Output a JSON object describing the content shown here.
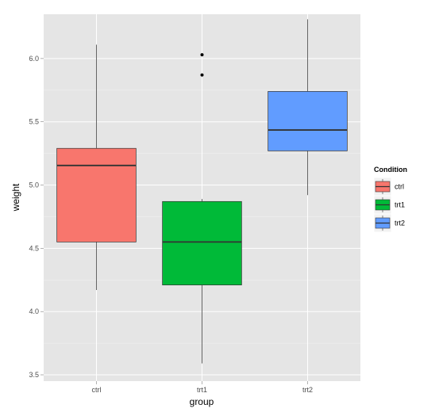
{
  "chart_data": {
    "type": "boxplot",
    "xlabel": "group",
    "ylabel": "weight",
    "ylim": [
      3.45,
      6.35
    ],
    "yticks": [
      3.5,
      4.0,
      4.5,
      5.0,
      5.5,
      6.0
    ],
    "ytick_labels": [
      "3.5",
      "4.0",
      "4.5",
      "5.0",
      "5.5",
      "6.0"
    ],
    "categories": [
      "ctrl",
      "trt1",
      "trt2"
    ],
    "grid": true,
    "legend": {
      "title": "Condition",
      "position": "right",
      "entries": [
        "ctrl",
        "trt1",
        "trt2"
      ]
    },
    "series": [
      {
        "category": "ctrl",
        "color": "#F8766D",
        "whisker_low": 4.17,
        "q1": 4.55,
        "median": 5.155,
        "q3": 5.29,
        "whisker_high": 6.11,
        "outliers": []
      },
      {
        "category": "trt1",
        "color": "#00BA38",
        "whisker_low": 3.59,
        "q1": 4.21,
        "median": 4.55,
        "q3": 4.87,
        "whisker_high": 4.89,
        "outliers": [
          5.87,
          6.03
        ]
      },
      {
        "category": "trt2",
        "color": "#619CFF",
        "whisker_low": 4.92,
        "q1": 5.27,
        "median": 5.435,
        "q3": 5.74,
        "whisker_high": 6.31,
        "outliers": []
      }
    ]
  }
}
